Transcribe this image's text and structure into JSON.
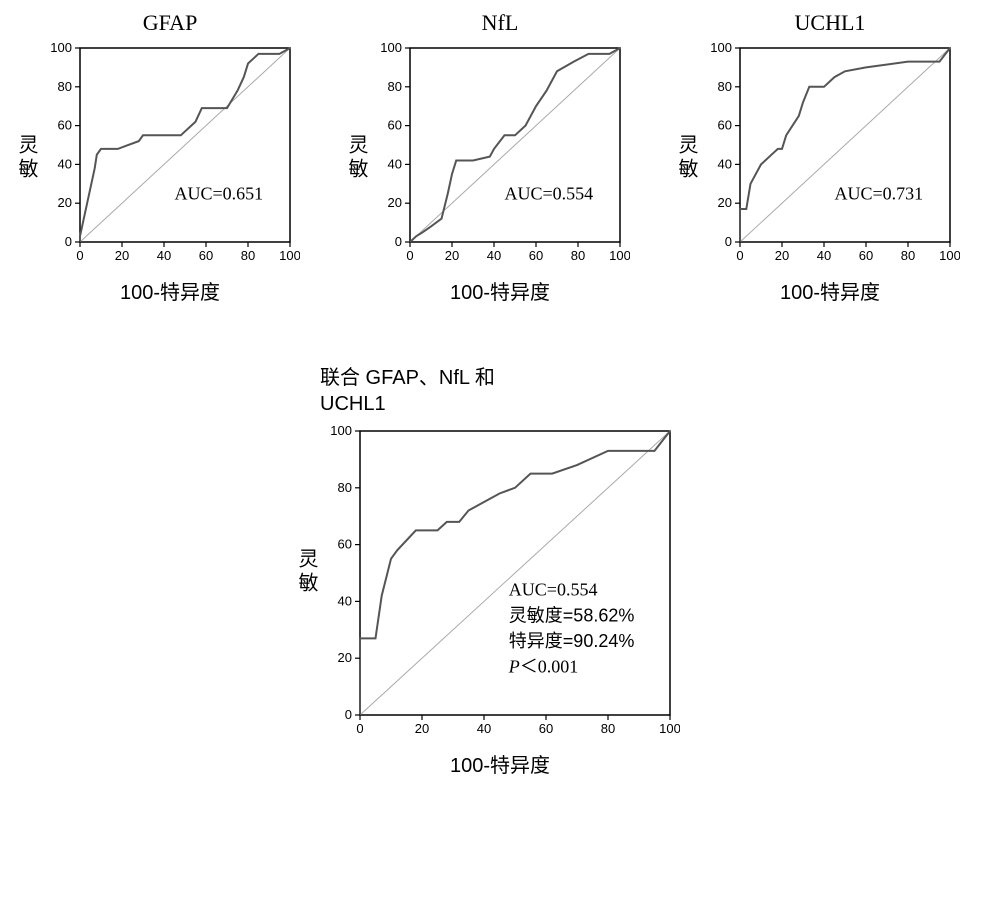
{
  "layout": {
    "small_plot_w": 260,
    "small_plot_h": 230,
    "large_plot_w": 360,
    "large_plot_h": 320,
    "background": "#ffffff",
    "axis_color": "#000000",
    "diag_color": "#aaaaaa",
    "roc_color": "#555555",
    "roc_width": 2
  },
  "axes": {
    "xlim": [
      0,
      100
    ],
    "ylim": [
      0,
      100
    ],
    "xticks": [
      0,
      20,
      40,
      60,
      80,
      100
    ],
    "yticks": [
      0,
      20,
      40,
      60,
      80,
      100
    ],
    "xlabel": "100-特异度",
    "ylabel": "灵敏"
  },
  "charts": {
    "gfap": {
      "title": "GFAP",
      "auc_label": "AUC=0.651",
      "points": [
        [
          0,
          0
        ],
        [
          0,
          3
        ],
        [
          3,
          18
        ],
        [
          5,
          28
        ],
        [
          7,
          38
        ],
        [
          8,
          45
        ],
        [
          10,
          48
        ],
        [
          18,
          48
        ],
        [
          28,
          52
        ],
        [
          30,
          55
        ],
        [
          48,
          55
        ],
        [
          55,
          62
        ],
        [
          58,
          69
        ],
        [
          70,
          69
        ],
        [
          75,
          78
        ],
        [
          78,
          85
        ],
        [
          80,
          92
        ],
        [
          85,
          97
        ],
        [
          95,
          97
        ],
        [
          100,
          100
        ]
      ]
    },
    "nfl": {
      "title": "NfL",
      "auc_label": "AUC=0.554",
      "points": [
        [
          0,
          0
        ],
        [
          3,
          3
        ],
        [
          6,
          5
        ],
        [
          10,
          8
        ],
        [
          15,
          12
        ],
        [
          18,
          25
        ],
        [
          20,
          35
        ],
        [
          22,
          42
        ],
        [
          30,
          42
        ],
        [
          38,
          44
        ],
        [
          40,
          48
        ],
        [
          45,
          55
        ],
        [
          50,
          55
        ],
        [
          55,
          60
        ],
        [
          60,
          70
        ],
        [
          65,
          78
        ],
        [
          70,
          88
        ],
        [
          78,
          93
        ],
        [
          85,
          97
        ],
        [
          95,
          97
        ],
        [
          100,
          100
        ]
      ]
    },
    "uchl1": {
      "title": "UCHL1",
      "auc_label": "AUC=0.731",
      "points": [
        [
          0,
          0
        ],
        [
          0,
          17
        ],
        [
          3,
          17
        ],
        [
          5,
          30
        ],
        [
          10,
          40
        ],
        [
          15,
          45
        ],
        [
          18,
          48
        ],
        [
          20,
          48
        ],
        [
          22,
          55
        ],
        [
          28,
          65
        ],
        [
          30,
          72
        ],
        [
          33,
          80
        ],
        [
          40,
          80
        ],
        [
          45,
          85
        ],
        [
          50,
          88
        ],
        [
          60,
          90
        ],
        [
          80,
          93
        ],
        [
          95,
          93
        ],
        [
          100,
          100
        ]
      ]
    },
    "combined": {
      "title_line1": "联合 GFAP、NfL 和",
      "title_line2": "UCHL1",
      "annot": {
        "auc": "AUC=0.554",
        "sens": "灵敏度=58.62%",
        "spec": "特异度=90.24%",
        "pval_prefix": "P",
        "pval_rest": "＜0.001"
      },
      "points": [
        [
          0,
          0
        ],
        [
          0,
          27
        ],
        [
          5,
          27
        ],
        [
          7,
          42
        ],
        [
          10,
          55
        ],
        [
          12,
          58
        ],
        [
          18,
          65
        ],
        [
          25,
          65
        ],
        [
          28,
          68
        ],
        [
          32,
          68
        ],
        [
          35,
          72
        ],
        [
          40,
          75
        ],
        [
          45,
          78
        ],
        [
          50,
          80
        ],
        [
          55,
          85
        ],
        [
          62,
          85
        ],
        [
          70,
          88
        ],
        [
          80,
          93
        ],
        [
          95,
          93
        ],
        [
          100,
          100
        ]
      ]
    }
  }
}
